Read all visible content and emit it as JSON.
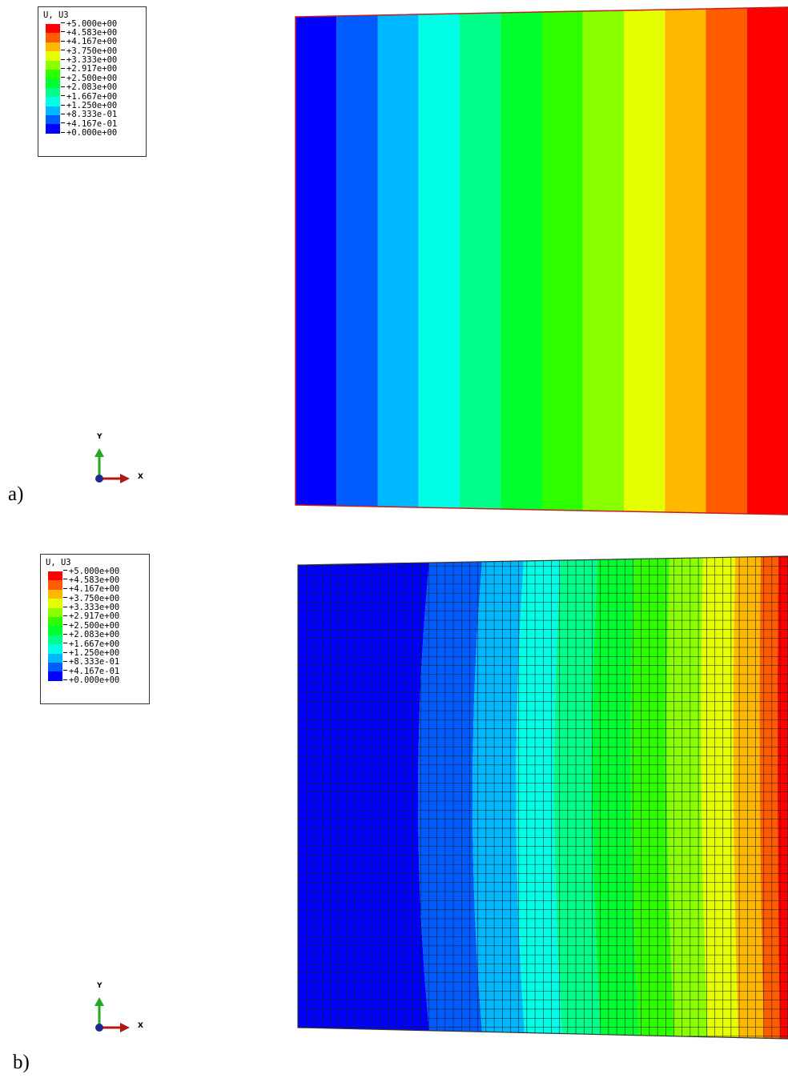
{
  "legend": {
    "title": "U, U3",
    "values": [
      "+5.000e+00",
      "+4.583e+00",
      "+4.167e+00",
      "+3.750e+00",
      "+3.333e+00",
      "+2.917e+00",
      "+2.500e+00",
      "+2.083e+00",
      "+1.667e+00",
      "+1.250e+00",
      "+8.333e-01",
      "+4.167e-01",
      "+0.000e+00"
    ],
    "colors_top_to_bottom": [
      "#ff0000",
      "#ff5c00",
      "#ffb800",
      "#e6ff00",
      "#8aff00",
      "#2eff00",
      "#00ff2e",
      "#00ff8a",
      "#00ffe6",
      "#00b8ff",
      "#005cff",
      "#0000ff"
    ]
  },
  "triad": {
    "x_label": "X",
    "y_label": "Y"
  },
  "panels": [
    {
      "label": "a)"
    },
    {
      "label": "b)"
    }
  ]
}
